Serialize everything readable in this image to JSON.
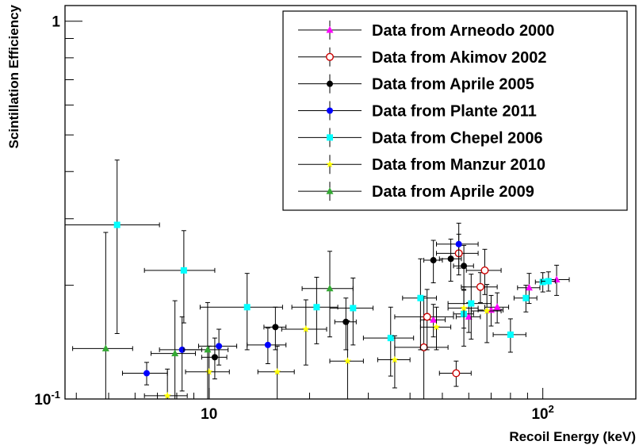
{
  "chart_data": {
    "type": "scatter",
    "xlabel": "Recoil Energy (keV)",
    "ylabel": "Scintillation Efficiency",
    "xscale": "log",
    "yscale": "log",
    "xlim": [
      3.7,
      190
    ],
    "ylim": [
      0.1,
      1.1
    ],
    "x_ticks": [
      {
        "value": 10,
        "label": "10",
        "exp": ""
      },
      {
        "value": 100,
        "label": "10",
        "exp": "2"
      }
    ],
    "y_ticks": [
      {
        "value": 0.1,
        "label": "10",
        "exp": "-1"
      },
      {
        "value": 1,
        "label": "1",
        "exp": ""
      }
    ],
    "grid": false,
    "legend_position": "top-right",
    "series": [
      {
        "name": "Data from Arneodo 2000",
        "marker": "triangle",
        "color": "#ff00ff",
        "points": [
          {
            "x": 47,
            "y": 0.162,
            "xerr": 4,
            "yerr": 0.016
          },
          {
            "x": 60,
            "y": 0.165,
            "xerr": 5,
            "yerr": 0.015
          },
          {
            "x": 70,
            "y": 0.172,
            "xerr": 6,
            "yerr": 0.016
          },
          {
            "x": 73,
            "y": 0.175,
            "xerr": 6,
            "yerr": 0.016
          },
          {
            "x": 91,
            "y": 0.197,
            "xerr": 7,
            "yerr": 0.018
          },
          {
            "x": 110,
            "y": 0.207,
            "xerr": 10,
            "yerr": 0.019
          }
        ]
      },
      {
        "name": "Data from Akimov 2002",
        "marker": "open-circle",
        "color": "#cc0000",
        "points": [
          {
            "x": 44,
            "y": 0.137,
            "xerr": 8,
            "yerr": 0.05
          },
          {
            "x": 45,
            "y": 0.165,
            "xerr": 9,
            "yerr": 0.03
          },
          {
            "x": 55,
            "y": 0.117,
            "xerr": 6,
            "yerr": 0.009
          },
          {
            "x": 56,
            "y": 0.243,
            "xerr": 8,
            "yerr": 0.03
          },
          {
            "x": 65,
            "y": 0.198,
            "xerr": 8,
            "yerr": 0.018
          },
          {
            "x": 67,
            "y": 0.219,
            "xerr": 8,
            "yerr": 0.03
          }
        ]
      },
      {
        "name": "Data from Aprile 2005",
        "marker": "filled-circle",
        "color": "#000000",
        "points": [
          {
            "x": 10.4,
            "y": 0.129,
            "xerr": 0.9,
            "yerr": 0.016
          },
          {
            "x": 15.8,
            "y": 0.155,
            "xerr": 1.2,
            "yerr": 0.02
          },
          {
            "x": 25.7,
            "y": 0.16,
            "xerr": 1.9,
            "yerr": 0.025
          },
          {
            "x": 47,
            "y": 0.233,
            "xerr": 3,
            "yerr": 0.03
          },
          {
            "x": 53,
            "y": 0.235,
            "xerr": 4,
            "yerr": 0.03
          },
          {
            "x": 58,
            "y": 0.225,
            "xerr": 4,
            "yerr": 0.03
          }
        ]
      },
      {
        "name": "Data from Plante 2011",
        "marker": "filled-circle",
        "color": "#0000ff",
        "points": [
          {
            "x": 6.5,
            "y": 0.117,
            "xerr": 1,
            "yerr": 0.008
          },
          {
            "x": 8.3,
            "y": 0.135,
            "xerr": 1.2,
            "yerr": 0.03
          },
          {
            "x": 10.7,
            "y": 0.138,
            "xerr": 1.4,
            "yerr": 0.015
          },
          {
            "x": 15,
            "y": 0.139,
            "xerr": 2,
            "yerr": 0.015
          },
          {
            "x": 56,
            "y": 0.257,
            "xerr": 8,
            "yerr": 0.035
          }
        ]
      },
      {
        "name": "Data from Chepel 2006",
        "marker": "square",
        "color": "#00ffff",
        "points": [
          {
            "x": 5.3,
            "y": 0.289,
            "xerr": 1.8,
            "yerr": 0.14
          },
          {
            "x": 8.4,
            "y": 0.219,
            "xerr": 2,
            "yerr": 0.06
          },
          {
            "x": 13,
            "y": 0.175,
            "xerr": 3.6,
            "yerr": 0.04
          },
          {
            "x": 21,
            "y": 0.175,
            "xerr": 3.3,
            "yerr": 0.035
          },
          {
            "x": 27,
            "y": 0.174,
            "xerr": 4,
            "yerr": 0.035
          },
          {
            "x": 35,
            "y": 0.145,
            "xerr": 6,
            "yerr": 0.03
          },
          {
            "x": 43,
            "y": 0.185,
            "xerr": 5,
            "yerr": 0.05
          },
          {
            "x": 58,
            "y": 0.168,
            "xerr": 4,
            "yerr": 0.03
          },
          {
            "x": 61,
            "y": 0.179,
            "xerr": 9,
            "yerr": 0.035
          },
          {
            "x": 80,
            "y": 0.148,
            "xerr": 9,
            "yerr": 0.015
          },
          {
            "x": 89,
            "y": 0.185,
            "xerr": 7,
            "yerr": 0.015
          },
          {
            "x": 100,
            "y": 0.204,
            "xerr": 5,
            "yerr": 0.012
          },
          {
            "x": 104,
            "y": 0.205,
            "xerr": 5,
            "yerr": 0.012
          }
        ]
      },
      {
        "name": "Data from Manzur 2010",
        "marker": "star",
        "color": "#ffff00",
        "points": [
          {
            "x": 7.5,
            "y": 0.102,
            "xerr": 1.1,
            "yerr": 0.018
          },
          {
            "x": 10,
            "y": 0.118,
            "xerr": 1.5,
            "yerr": 0.02
          },
          {
            "x": 16,
            "y": 0.118,
            "xerr": 2,
            "yerr": 0.02
          },
          {
            "x": 19.5,
            "y": 0.153,
            "xerr": 3,
            "yerr": 0.03
          },
          {
            "x": 26,
            "y": 0.126,
            "xerr": 3,
            "yerr": 0.035
          },
          {
            "x": 36,
            "y": 0.127,
            "xerr": 4,
            "yerr": 0.02
          },
          {
            "x": 48,
            "y": 0.155,
            "xerr": 5,
            "yerr": 0.02
          },
          {
            "x": 58,
            "y": 0.174,
            "xerr": 6,
            "yerr": 0.02
          },
          {
            "x": 68,
            "y": 0.171,
            "xerr": 7,
            "yerr": 0.03
          }
        ]
      },
      {
        "name": "Data from Aprile 2009",
        "marker": "triangle",
        "color": "#33aa33",
        "points": [
          {
            "x": 4.9,
            "y": 0.136,
            "xerr": 1,
            "yerr": 0.14
          },
          {
            "x": 7.9,
            "y": 0.132,
            "xerr": 1.2,
            "yerr": 0.05
          },
          {
            "x": 9.9,
            "y": 0.135,
            "xerr": 1.5,
            "yerr": 0.045
          },
          {
            "x": 23,
            "y": 0.196,
            "xerr": 4,
            "yerr": 0.05
          }
        ]
      }
    ]
  }
}
